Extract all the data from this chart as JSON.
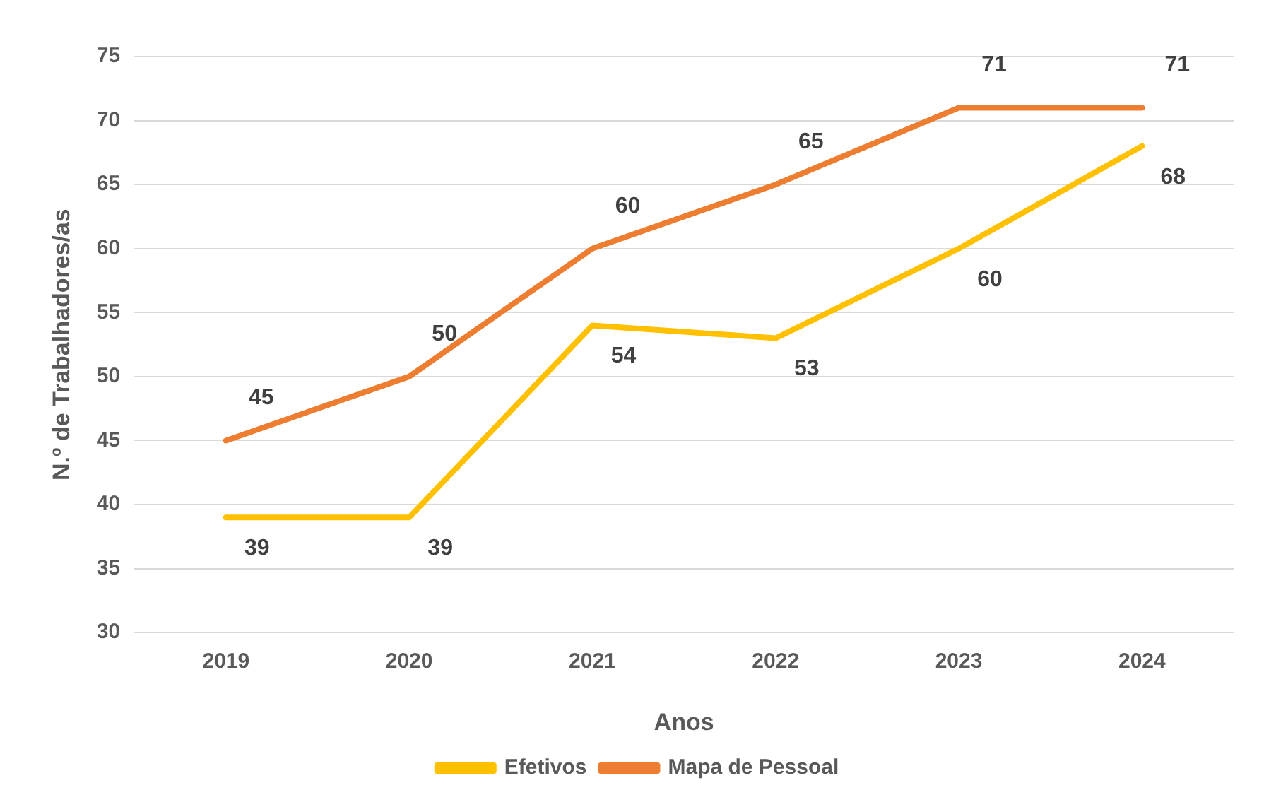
{
  "chart_data": {
    "type": "line",
    "xlabel": "Anos",
    "ylabel": "N.º de Trabalhadores/as",
    "categories": [
      "2019",
      "2020",
      "2021",
      "2022",
      "2023",
      "2024"
    ],
    "series": [
      {
        "name": "Efetivos",
        "color": "#ffc000",
        "values": [
          39,
          39,
          54,
          53,
          60,
          68
        ]
      },
      {
        "name": "Mapa de Pessoal",
        "color": "#ed7d31",
        "values": [
          45,
          50,
          60,
          65,
          71,
          71
        ]
      }
    ],
    "ylim": [
      30,
      75
    ],
    "yticks": [
      30,
      35,
      40,
      45,
      50,
      55,
      60,
      65,
      70,
      75
    ],
    "grid": "y",
    "legend": "bottom",
    "marker": "none",
    "line_style": "solid",
    "data_labels": true
  }
}
